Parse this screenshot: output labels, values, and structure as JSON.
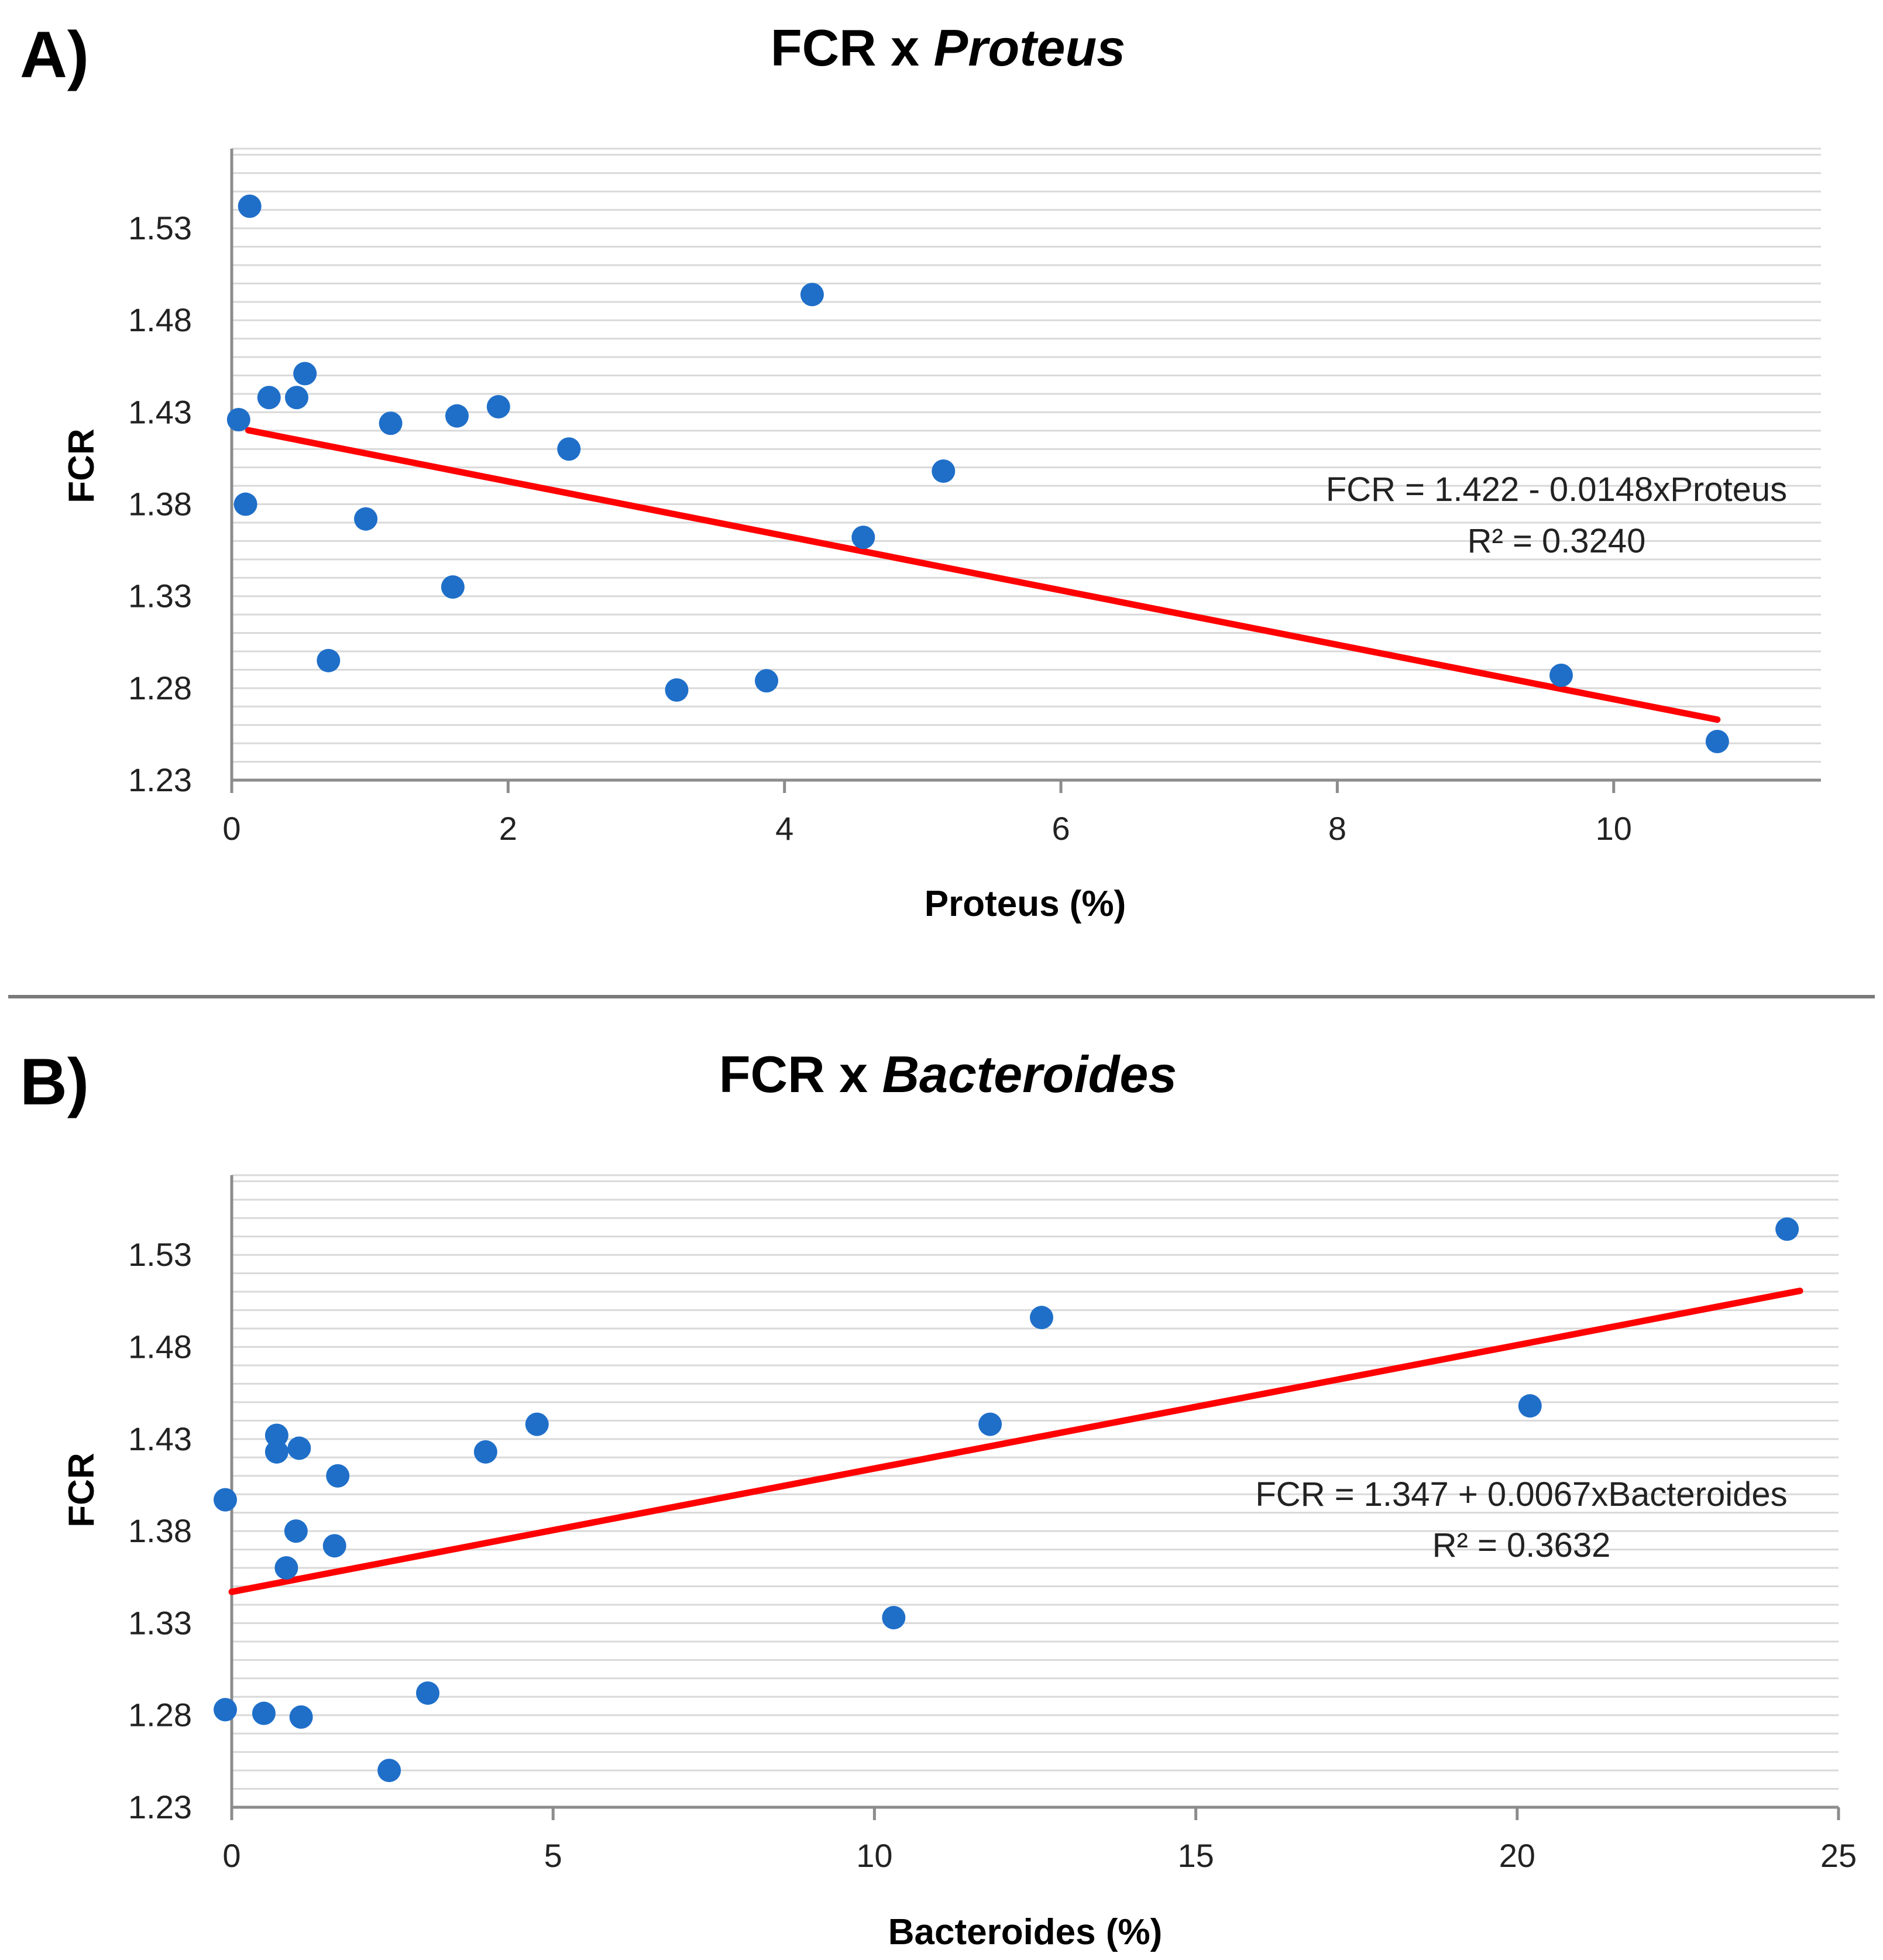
{
  "divider_color": "#7a7a7a",
  "point_color": "#1f6fc9",
  "trend_color": "#ff0000",
  "chart_data": [
    {
      "type": "scatter",
      "panel_label": "A)",
      "title_prefix": "FCR x ",
      "title_italic": "Proteus",
      "xlabel": "Proteus (%)",
      "ylabel": "FCR",
      "xlim": [
        0,
        11.5
      ],
      "ylim": [
        1.23,
        1.5733
      ],
      "xticks": [
        0,
        2,
        4,
        6,
        8,
        10
      ],
      "xtick_labels": [
        "0",
        "2",
        "4",
        "6",
        "8",
        "10"
      ],
      "yticks": [
        1.23,
        1.28,
        1.33,
        1.38,
        1.43,
        1.48,
        1.53
      ],
      "ytick_labels": [
        "1.23",
        "1.28",
        "1.33",
        "1.38",
        "1.43",
        "1.48",
        "1.53"
      ],
      "minor_grid_step": 0.01,
      "grid": true,
      "x": [
        0.13,
        0.05,
        0.27,
        0.47,
        0.53,
        0.1,
        0.97,
        1.15,
        1.6,
        1.63,
        1.93,
        0.7,
        2.44,
        3.22,
        3.87,
        4.2,
        4.57,
        5.15,
        9.62,
        10.75
      ],
      "y": [
        1.542,
        1.426,
        1.438,
        1.438,
        1.451,
        1.38,
        1.372,
        1.424,
        1.335,
        1.428,
        1.433,
        1.295,
        1.41,
        1.279,
        1.284,
        1.494,
        1.362,
        1.398,
        1.287,
        1.251
      ],
      "trendline": {
        "intercept": 1.422,
        "slope": -0.0148,
        "x_range": [
          0.12,
          10.75
        ]
      },
      "equation": "FCR = 1.422 - 0.0148xProteus",
      "r_squared": "R² = 0.3240"
    },
    {
      "type": "scatter",
      "panel_label": "B)",
      "title_prefix": "FCR x ",
      "title_italic": "Bacteroides",
      "xlabel": "Bacteroides (%)",
      "ylabel": "FCR",
      "xlim": [
        0,
        25
      ],
      "ylim": [
        1.23,
        1.5733
      ],
      "xticks": [
        0,
        5,
        10,
        15,
        20,
        25
      ],
      "xtick_labels": [
        "0",
        "5",
        "10",
        "15",
        "20",
        "25"
      ],
      "yticks": [
        1.23,
        1.28,
        1.33,
        1.38,
        1.43,
        1.48,
        1.53
      ],
      "ytick_labels": [
        "1.23",
        "1.28",
        "1.33",
        "1.38",
        "1.43",
        "1.48",
        "1.53"
      ],
      "minor_grid_step": 0.01,
      "grid": true,
      "x": [
        24.2,
        12.6,
        20.2,
        11.8,
        4.75,
        0.7,
        0.7,
        1.05,
        3.95,
        1.65,
        -0.1,
        1.0,
        1.6,
        0.85,
        10.3,
        3.05,
        -0.1,
        0.5,
        1.08,
        2.45
      ],
      "y": [
        1.544,
        1.496,
        1.448,
        1.438,
        1.438,
        1.432,
        1.423,
        1.425,
        1.423,
        1.41,
        1.397,
        1.38,
        1.372,
        1.36,
        1.333,
        1.292,
        1.283,
        1.281,
        1.279,
        1.25
      ],
      "trendline": {
        "intercept": 1.347,
        "slope": 0.0067,
        "x_range": [
          0.0,
          24.4
        ]
      },
      "equation": "FCR = 1.347 + 0.0067xBacteroides",
      "r_squared": "R² = 0.3632"
    }
  ]
}
